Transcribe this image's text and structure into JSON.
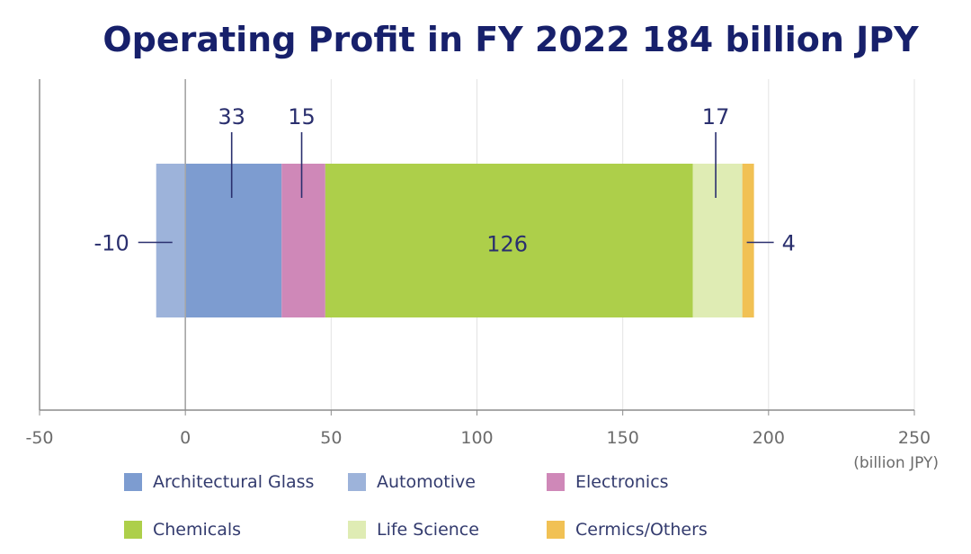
{
  "chart_data": {
    "type": "bar",
    "orientation": "horizontal",
    "stacked": true,
    "title": "Operating Profit in FY 2022 184 billion JPY",
    "unit_label": "(billion JPY)",
    "xlim": [
      -50,
      250
    ],
    "x_ticks": [
      -50,
      0,
      50,
      100,
      150,
      200,
      250
    ],
    "grid": true,
    "legend_position": "bottom",
    "series": [
      {
        "name": "Automotive",
        "value": -10,
        "label": "-10",
        "color": "#9db3da"
      },
      {
        "name": "Architectural Glass",
        "value": 33,
        "label": "33",
        "color": "#7d9cd0"
      },
      {
        "name": "Electronics",
        "value": 15,
        "label": "15",
        "color": "#cf88b8"
      },
      {
        "name": "Chemicals",
        "value": 126,
        "label": "126",
        "color": "#adcf4a"
      },
      {
        "name": "Life Science",
        "value": 17,
        "label": "17",
        "color": "#dfecb4"
      },
      {
        "name": "Cermics/Others",
        "value": 4,
        "label": "4",
        "color": "#f1c154"
      }
    ],
    "legend_order": [
      "Architectural Glass",
      "Automotive",
      "Electronics",
      "Chemicals",
      "Life Science",
      "Cermics/Others"
    ]
  }
}
